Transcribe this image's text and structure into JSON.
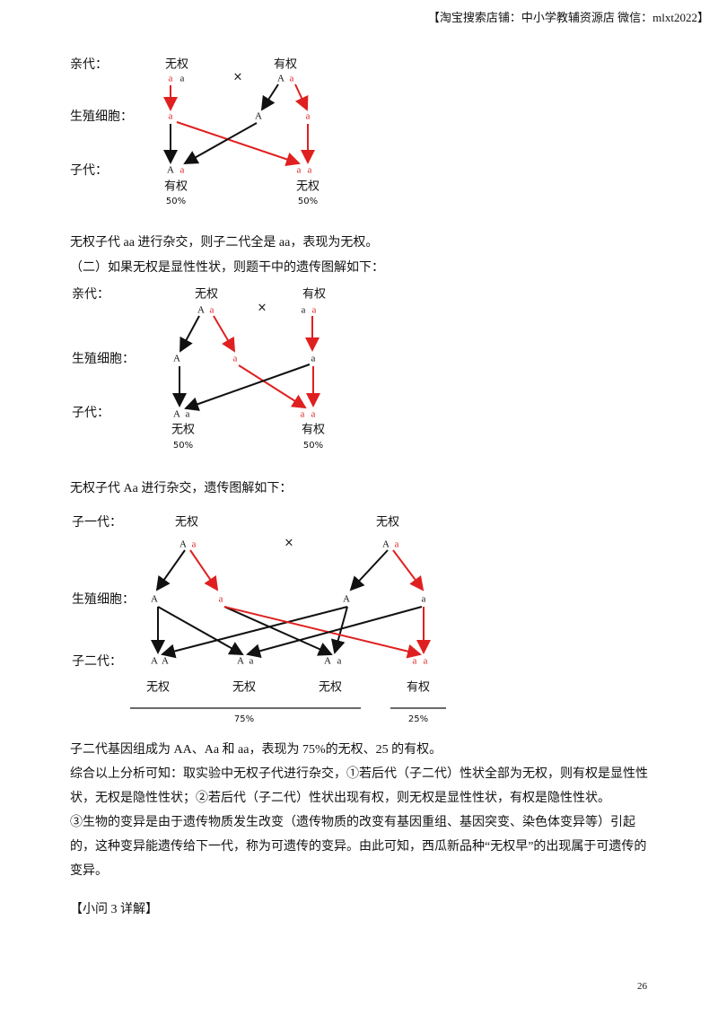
{
  "header": "【淘宝搜索店铺：中小学教辅资源店 微信：mlxt2022】",
  "diagram_1": {
    "labels": [
      "亲代：",
      "生殖细胞：",
      "子代："
    ],
    "parents": [
      "无权",
      "有权"
    ],
    "cross": "×",
    "parent_genes": [
      "a",
      "a",
      "A",
      "a"
    ],
    "gametes": [
      "a",
      "A",
      "a"
    ],
    "offspring_genes": [
      "A",
      "a",
      "a",
      "a"
    ],
    "phenotypes": [
      "有权",
      "无权"
    ],
    "ratios": [
      "50%",
      "50%"
    ]
  },
  "paragraphs_1": [
    "无权子代 aa 进行杂交，则子二代全是 aa，表现为无权。",
    "（二）如果无权是显性性状，则题干中的遗传图解如下："
  ],
  "diagram_2": {
    "labels": [
      "亲代：",
      "生殖细胞：",
      "子代："
    ],
    "parents": [
      "无权",
      "有权"
    ],
    "cross": "×",
    "parent_genes": [
      "A",
      "a",
      "a",
      "a"
    ],
    "gametes": [
      "A",
      "a",
      "a"
    ],
    "offspring_genes": [
      "A",
      "a",
      "a",
      "a"
    ],
    "phenotypes": [
      "无权",
      "有权"
    ],
    "ratios": [
      "50%",
      "50%"
    ]
  },
  "paragraph_2": "无权子代 Aa 进行杂交，遗传图解如下：",
  "diagram_3": {
    "labels": [
      "子一代：",
      "生殖细胞：",
      "子二代："
    ],
    "parents": [
      "无权",
      "无权"
    ],
    "cross": "×",
    "parent_genes": [
      "A",
      "a",
      "A",
      "a"
    ],
    "gametes": [
      "A",
      "a",
      "A",
      "a"
    ],
    "offspring_genes": [
      "A",
      "A",
      "A",
      "a",
      "A",
      "a",
      "a",
      "a"
    ],
    "phenotypes": [
      "无权",
      "无权",
      "无权",
      "有权"
    ],
    "ratios": [
      "75%",
      "25%"
    ]
  },
  "paragraphs_3": [
    "子二代基因组成为 AA、Aa 和 aa，表现为 75%的无权、25 的有权。",
    "综合以上分析可知：取实验中无权子代进行杂交，①若后代（子二代）性状全部为无权，则有权是显性性状，无权是隐性性状；②若后代（子二代）性状出现有权，则无权是显性性状，有权是隐性性状。",
    "③生物的变异是由于遗传物质发生改变（遗传物质的改变有基因重组、基因突变、染色体变异等）引起的，这种变异能遗传给下一代，称为可遗传的变异。由此可知，西瓜新品种“无权早”的出现属于可遗传的变异。",
    "【小问 3 详解】"
  ],
  "page_number": "26"
}
